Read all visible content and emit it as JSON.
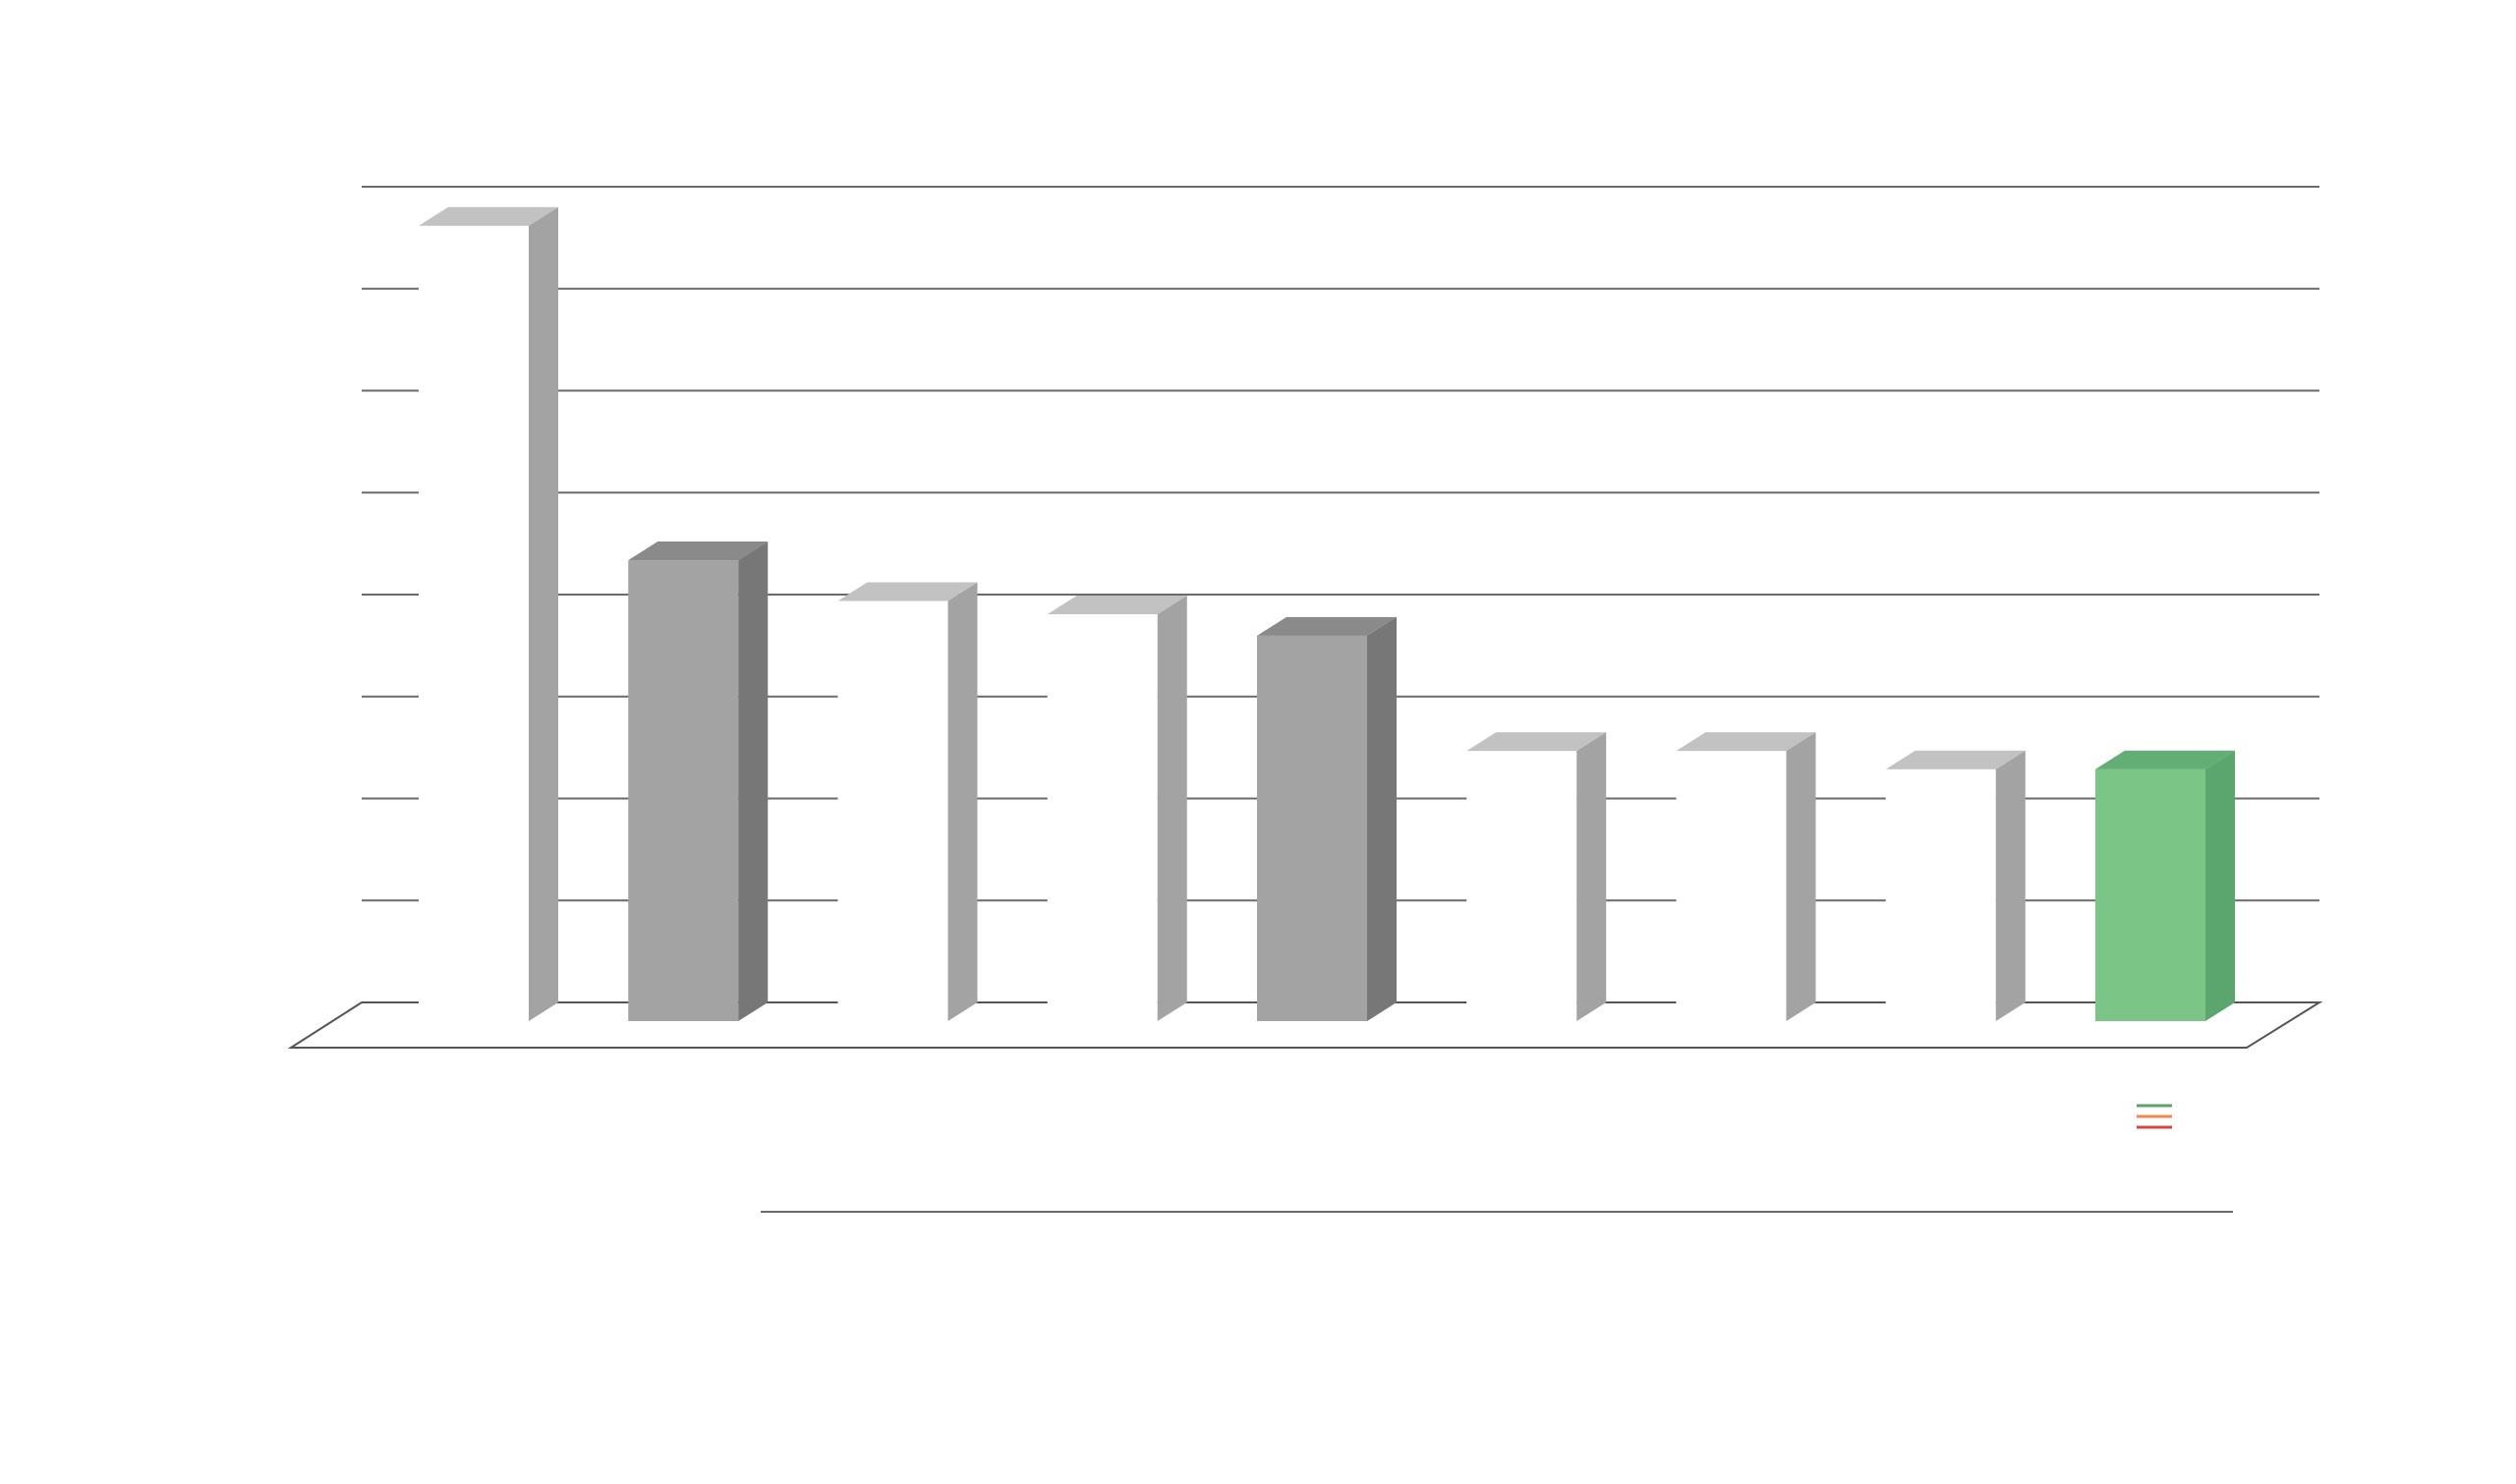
{
  "chart_data": {
    "type": "bar",
    "style": "3d-column",
    "categories": [
      "",
      "",
      "",
      "",
      "",
      "",
      "",
      "",
      ""
    ],
    "values": [
      78.0,
      45.2,
      41.2,
      39.9,
      37.8,
      26.5,
      26.5,
      24.7,
      24.7
    ],
    "ylim": [
      0,
      80
    ],
    "y_major_unit": 10,
    "grid": true,
    "legend": {
      "placement": "bottom-right",
      "swatch_colors": [
        "#5aa46c",
        "#f08a4b",
        "#d9443c"
      ]
    },
    "colors": {
      "front": [
        "#ffffff",
        "#a3a3a3",
        "#ffffff",
        "#ffffff",
        "#a3a3a3",
        "#ffffff",
        "#ffffff",
        "#ffffff",
        "#7bc687"
      ],
      "side": [
        "#a3a3a3",
        "#777777",
        "#a3a3a3",
        "#a3a3a3",
        "#777777",
        "#a3a3a3",
        "#a3a3a3",
        "#a3a3a3",
        "#5aa66e"
      ],
      "top": [
        "#c2c2c2",
        "#8a8a8a",
        "#c2c2c2",
        "#c2c2c2",
        "#8a8a8a",
        "#c2c2c2",
        "#c2c2c2",
        "#c2c2c2",
        "#62ae74"
      ],
      "gridline": "#6b6b6b",
      "floor_outline": "#555555"
    }
  }
}
